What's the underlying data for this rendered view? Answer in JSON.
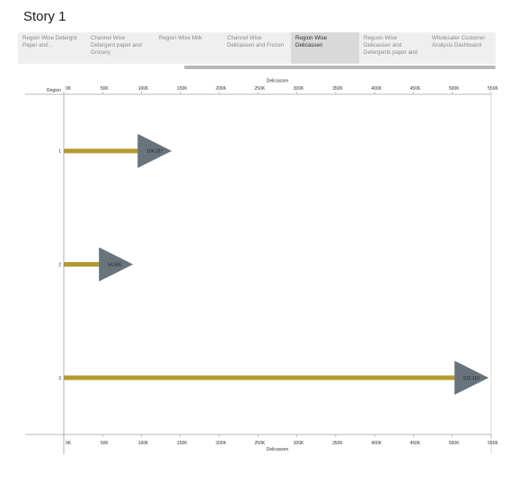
{
  "story": {
    "title": "Story 1"
  },
  "tabs": [
    {
      "label": "Region Wise Detergnt Paper and ..",
      "active": false
    },
    {
      "label": "Channel Wise Detergent paper and Grocery",
      "active": false
    },
    {
      "label": "Region Wise Milk",
      "active": false
    },
    {
      "label": "Channel Wise Delicassen and Frozen",
      "active": false
    },
    {
      "label": "Region Wise Delicassen",
      "active": true
    },
    {
      "label": "Reguon Wise Delicassen and Detergents paper and",
      "active": false
    },
    {
      "label": "Wholesaler Customer Analysis Dashboard",
      "active": false
    }
  ],
  "chart_data": {
    "type": "bar",
    "title": "",
    "xlabel": "Delicassen",
    "ylabel": "Region",
    "categories": [
      "1",
      "2",
      "3"
    ],
    "values": [
      104327,
      54506,
      512110
    ],
    "data_labels": [
      "104,327",
      "54,506",
      "512,110"
    ],
    "xlim": [
      0,
      550000
    ],
    "x_ticks": [
      0,
      50000,
      100000,
      150000,
      200000,
      250000,
      300000,
      350000,
      400000,
      450000,
      500000,
      550000
    ],
    "x_tick_labels": [
      "0K",
      "50K",
      "100K",
      "150K",
      "200K",
      "250K",
      "300K",
      "350K",
      "400K",
      "450K",
      "500K",
      "550K"
    ],
    "axis_position": "top and bottom",
    "grid": false,
    "bar_color": "#b39a2f",
    "marker": "triangle",
    "marker_color": "#69737b"
  }
}
